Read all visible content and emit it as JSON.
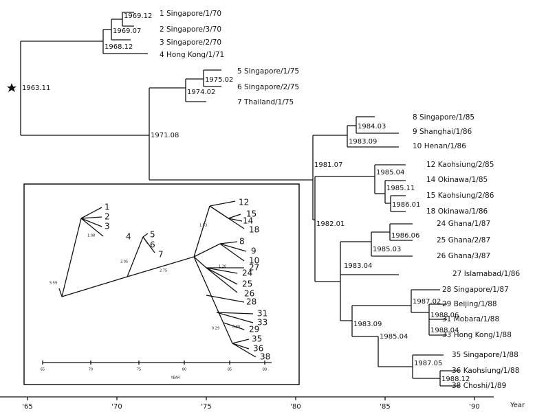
{
  "tree": {
    "root_date": "1963.11",
    "node_dates": [
      "1968.12",
      "1969.07",
      "1969.12",
      "1971.08",
      "1974.02",
      "1975.02",
      "1981.07",
      "1982.01",
      "1983.09",
      "1984.03",
      "1985.04",
      "1985.11",
      "1986.01",
      "1985.03",
      "1986.06",
      "1983.04",
      "1983.09",
      "1987.02",
      "1988.06",
      "1988.04",
      "1985.04",
      "1987.05",
      "1988.12"
    ],
    "tips": [
      "1 Singapore/1/70",
      "2 Singapore/3/70",
      "3 Singapore/2/70",
      "4 Hong Kong/1/71",
      "5 Singapore/1/75",
      "6 Singapore/2/75",
      "7 Thailand/1/75",
      "8 Singapore/1/85",
      "9 Shanghai/1/86",
      "10 Henan/1/86",
      "12 Kaohsiung/2/85",
      "14 Okinawa/1/85",
      "15 Kaohsiung/2/86",
      "18 Okinawa/1/86",
      "24 Ghana/1/87",
      "25 Ghana/2/87",
      "26 Ghana/3/87",
      "27 Islamabad/1/86",
      "28 Singapore/1/87",
      "29 Beijing/1/88",
      "31 Mobara/1/88",
      "33 Hong Kong/1/88",
      "35 Singapore/1/88",
      "36 Kaohsiung/1/88",
      "38 Choshi/1/89"
    ]
  },
  "axis": {
    "ticks": [
      "'65",
      "'70",
      "'75",
      "'80",
      "'85",
      "'90"
    ],
    "label": "Year"
  },
  "inset": {
    "tips": [
      "1",
      "2",
      "3",
      "4",
      "5",
      "6",
      "7",
      "12",
      "15",
      "14",
      "18",
      "8",
      "9",
      "10",
      "27",
      "24",
      "25",
      "26",
      "28",
      "31",
      "33",
      "29",
      "35",
      "36",
      "38"
    ],
    "branch_labels": [
      "5.59",
      "2.75",
      "2.05",
      "1.53",
      "1.20",
      "0.88",
      "1.08",
      "0.29"
    ],
    "axis": {
      "ticks": [
        65,
        70,
        75,
        80,
        85,
        89
      ],
      "label": "YEAR"
    }
  }
}
